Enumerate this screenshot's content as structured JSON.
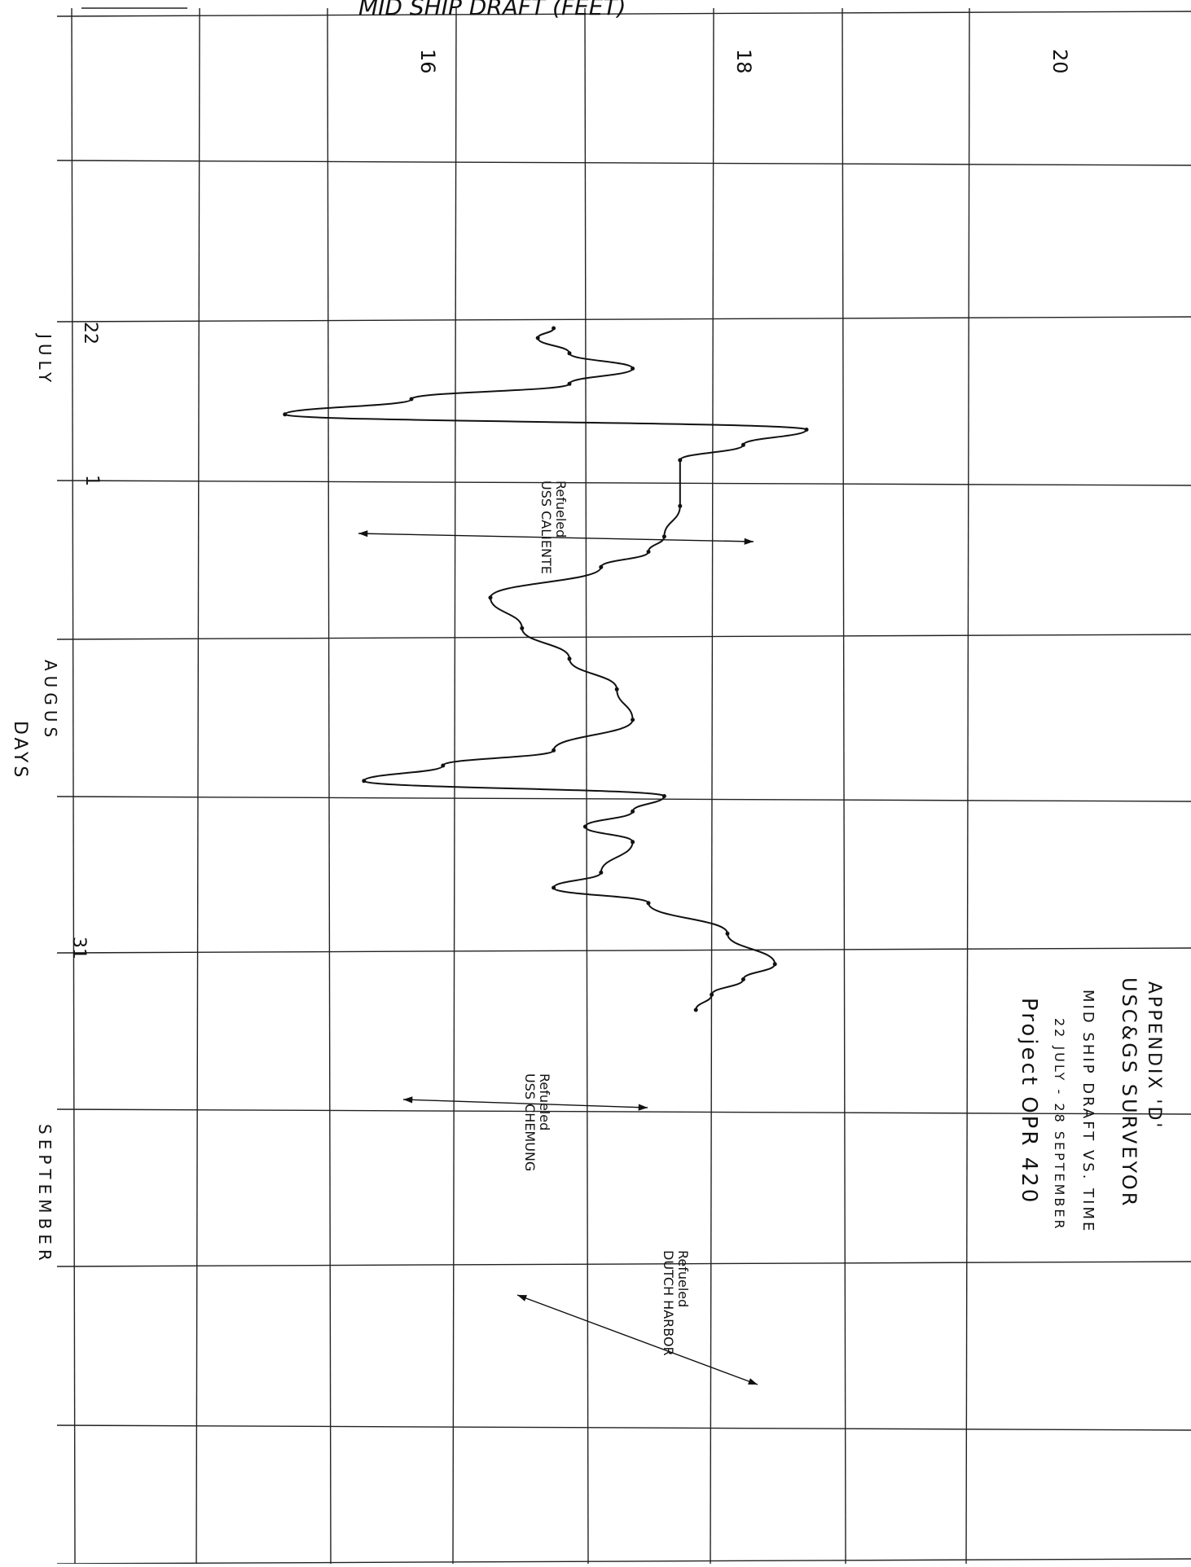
{
  "chart_data": {
    "type": "line",
    "title": "MID SHIP DRAFT (FEET)",
    "xlabel": "DAYS",
    "ylabel": "MID SHIP DRAFT (FEET)",
    "value_ticks": [
      "16",
      "18",
      "20"
    ],
    "time_ticks": [
      "22",
      "1",
      "31"
    ],
    "month_labels": [
      "JULY",
      "AUGUS",
      "SEPTEMBER"
    ],
    "ylim": [
      14,
      22
    ],
    "series": [
      {
        "points": [
          {
            "day": "Jul 22",
            "draft": 16.9
          },
          {
            "day": "Jul 22",
            "draft": 16.8
          },
          {
            "day": "Jul 23",
            "draft": 17.0
          },
          {
            "day": "Jul 24",
            "draft": 17.4
          },
          {
            "day": "Jul 25",
            "draft": 17.0
          },
          {
            "day": "Jul 26",
            "draft": 16.0
          },
          {
            "day": "Jul 27",
            "draft": 15.2
          },
          {
            "day": "Jul 28",
            "draft": 18.5
          },
          {
            "day": "Jul 29",
            "draft": 18.1
          },
          {
            "day": "Jul 30",
            "draft": 17.7
          },
          {
            "day": "Aug 2",
            "draft": 17.7
          },
          {
            "day": "Aug 4",
            "draft": 17.6
          },
          {
            "day": "Aug 5",
            "draft": 17.5
          },
          {
            "day": "Aug 6",
            "draft": 17.2
          },
          {
            "day": "Aug 8",
            "draft": 16.5
          },
          {
            "day": "Aug 10",
            "draft": 16.7
          },
          {
            "day": "Aug 12",
            "draft": 17.0
          },
          {
            "day": "Aug 14",
            "draft": 17.3
          },
          {
            "day": "Aug 16",
            "draft": 17.4
          },
          {
            "day": "Aug 18",
            "draft": 16.9
          },
          {
            "day": "Aug 19",
            "draft": 16.2
          },
          {
            "day": "Aug 20",
            "draft": 15.7
          },
          {
            "day": "Aug 21",
            "draft": 17.6
          },
          {
            "day": "Aug 22",
            "draft": 17.4
          },
          {
            "day": "Aug 23",
            "draft": 17.1
          },
          {
            "day": "Aug 24",
            "draft": 17.4
          },
          {
            "day": "Aug 26",
            "draft": 17.2
          },
          {
            "day": "Aug 27",
            "draft": 16.9
          },
          {
            "day": "Aug 28",
            "draft": 17.5
          },
          {
            "day": "Aug 30",
            "draft": 18.0
          },
          {
            "day": "Sep 1",
            "draft": 18.3
          },
          {
            "day": "Sep 2",
            "draft": 18.1
          },
          {
            "day": "Sep 3",
            "draft": 17.9
          },
          {
            "day": "Sep 4",
            "draft": 17.8
          }
        ]
      }
    ],
    "annotations": [
      {
        "line1": "Refueled",
        "line2": "USS CALIENTE"
      },
      {
        "line1": "Refueled",
        "line2": "USS CHEMUNG"
      },
      {
        "line1": "Refueled",
        "line2": "DUTCH HARBOR"
      }
    ],
    "grid": true,
    "legend": "none"
  },
  "info_block": {
    "line1": "APPENDIX 'D'",
    "line2": "USC&GS SURVEYOR",
    "line3": "MID SHIP DRAFT VS. TIME",
    "line4": "22 JULY - 28 SEPTEMBER",
    "line5": "Project OPR 420"
  }
}
